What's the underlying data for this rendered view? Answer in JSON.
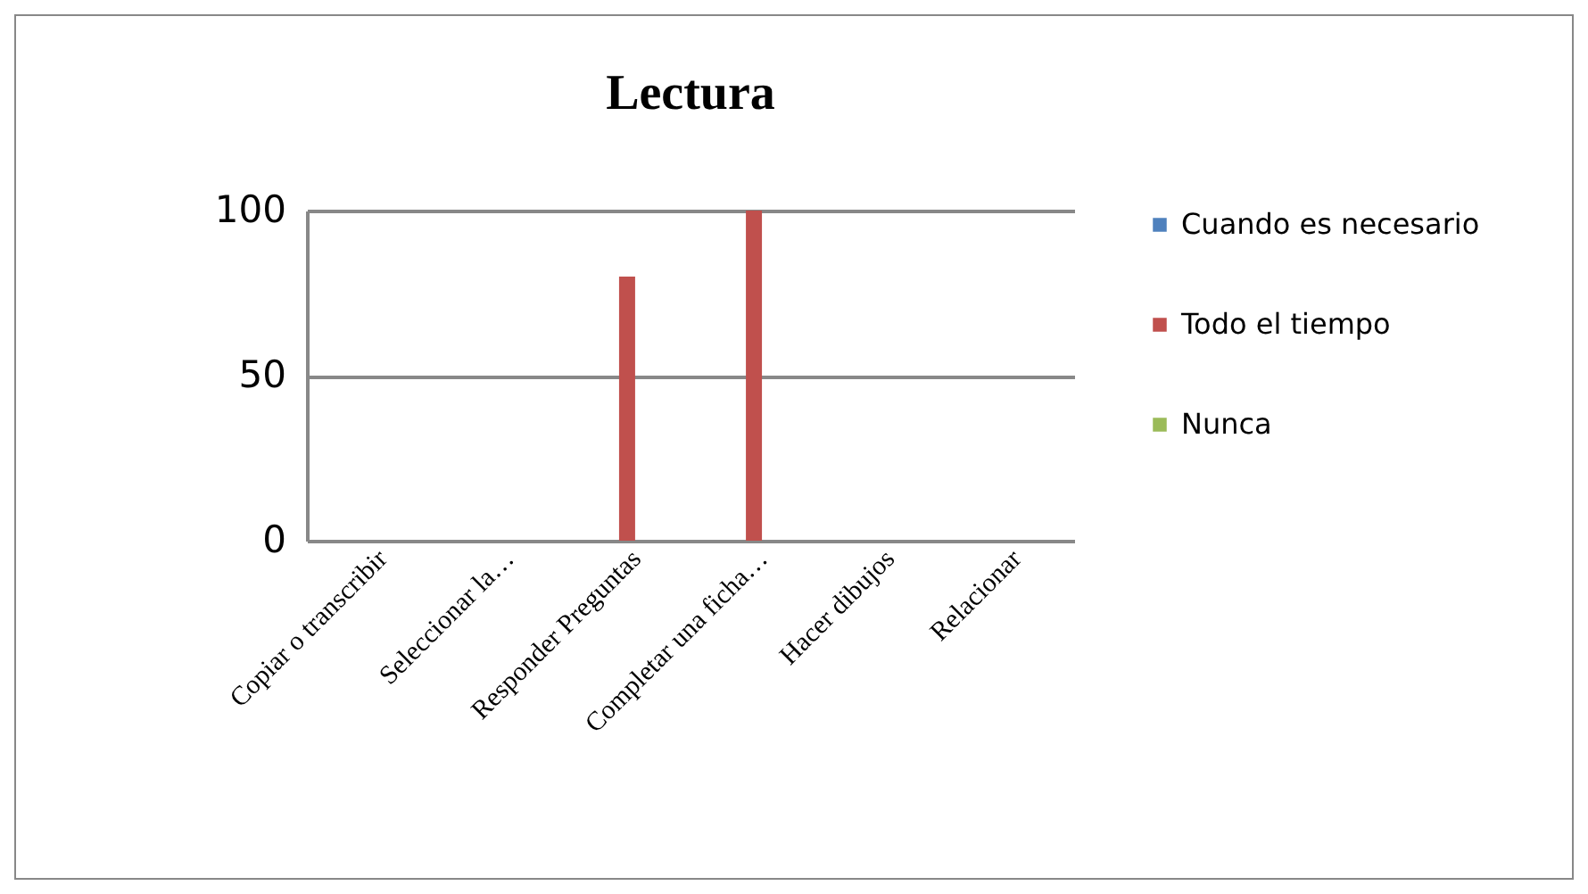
{
  "chart_data": {
    "type": "bar",
    "title": "Lectura",
    "categories": [
      "Copiar o transcribir",
      "Seleccionar la…",
      "Responder Preguntas",
      "Completar una ficha…",
      "Hacer dibujos",
      "Relacionar"
    ],
    "series": [
      {
        "name": "Cuando es necesario",
        "color": "#4f81bd",
        "values": [
          0,
          0,
          0,
          0,
          0,
          0
        ]
      },
      {
        "name": "Todo el tiempo",
        "color": "#c0504d",
        "values": [
          0,
          0,
          80,
          100,
          0,
          0
        ]
      },
      {
        "name": "Nunca",
        "color": "#9bbb59",
        "values": [
          0,
          0,
          0,
          0,
          0,
          0
        ]
      }
    ],
    "ylim": [
      0,
      100
    ],
    "yticks": [
      0,
      50,
      100
    ],
    "grid": "y",
    "legend": "right"
  }
}
